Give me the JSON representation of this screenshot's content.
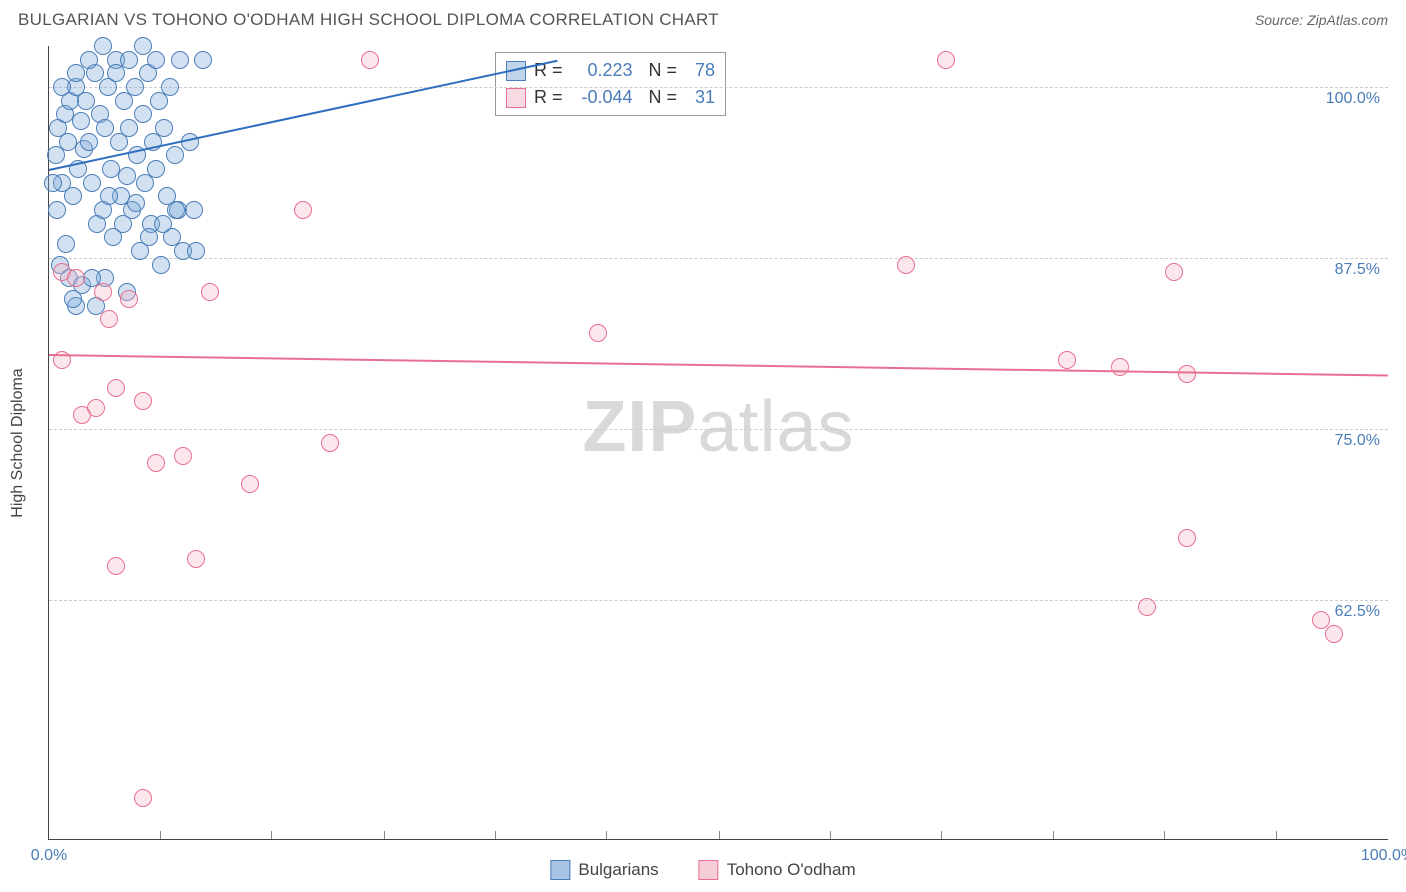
{
  "title": "BULGARIAN VS TOHONO O'ODHAM HIGH SCHOOL DIPLOMA CORRELATION CHART",
  "source_label": "Source: ZipAtlas.com",
  "y_axis_label": "High School Diploma",
  "watermark_a": "ZIP",
  "watermark_b": "atlas",
  "chart": {
    "type": "scatter",
    "xlim": [
      0,
      100
    ],
    "ylim": [
      45,
      103
    ],
    "x_ticks": [
      0,
      100
    ],
    "x_tick_labels": [
      "0.0%",
      "100.0%"
    ],
    "x_minor_ticks": [
      8.3,
      16.6,
      25,
      33.3,
      41.6,
      50,
      58.3,
      66.6,
      75,
      83.3,
      91.6
    ],
    "y_ticks": [
      62.5,
      75.0,
      87.5,
      100.0
    ],
    "y_tick_labels": [
      "62.5%",
      "75.0%",
      "87.5%",
      "100.0%"
    ],
    "background_color": "#ffffff",
    "grid_color": "#cccccc",
    "marker_radius": 9,
    "marker_stroke_width": 1.2,
    "series": [
      {
        "name": "Bulgarians",
        "fill": "#7fa9d6",
        "fill_opacity": 0.35,
        "stroke": "#4a7db8",
        "r_value": "0.223",
        "n_value": "78",
        "trend": {
          "x1": 0,
          "y1": 94,
          "x2": 38,
          "y2": 102,
          "color": "#2f6fc0",
          "width": 2
        },
        "points": [
          [
            0.5,
            95
          ],
          [
            0.7,
            97
          ],
          [
            1.0,
            93
          ],
          [
            1.2,
            98
          ],
          [
            1.4,
            96
          ],
          [
            1.6,
            99
          ],
          [
            1.8,
            92
          ],
          [
            2.0,
            100
          ],
          [
            2.2,
            94
          ],
          [
            2.4,
            97.5
          ],
          [
            2.6,
            95.5
          ],
          [
            2.8,
            99
          ],
          [
            3.0,
            96
          ],
          [
            3.2,
            93
          ],
          [
            3.4,
            101
          ],
          [
            3.6,
            90
          ],
          [
            3.8,
            98
          ],
          [
            4.0,
            91
          ],
          [
            4.2,
            97
          ],
          [
            4.4,
            100
          ],
          [
            4.6,
            94
          ],
          [
            4.8,
            89
          ],
          [
            5.0,
            102
          ],
          [
            5.2,
            96
          ],
          [
            5.4,
            92
          ],
          [
            5.6,
            99
          ],
          [
            5.8,
            93.5
          ],
          [
            6.0,
            97
          ],
          [
            6.2,
            91
          ],
          [
            6.4,
            100
          ],
          [
            6.6,
            95
          ],
          [
            6.8,
            88
          ],
          [
            7.0,
            98
          ],
          [
            7.2,
            93
          ],
          [
            7.4,
            101
          ],
          [
            7.6,
            90
          ],
          [
            7.8,
            96
          ],
          [
            8.0,
            94
          ],
          [
            8.2,
            99
          ],
          [
            8.4,
            87
          ],
          [
            8.6,
            97
          ],
          [
            8.8,
            92
          ],
          [
            9.0,
            100
          ],
          [
            9.2,
            89
          ],
          [
            9.4,
            95
          ],
          [
            9.6,
            91
          ],
          [
            9.8,
            102
          ],
          [
            10.0,
            88
          ],
          [
            1.5,
            86
          ],
          [
            2.5,
            85.5
          ],
          [
            3.5,
            84
          ],
          [
            0.8,
            87
          ],
          [
            1.3,
            88.5
          ],
          [
            4.5,
            92
          ],
          [
            5.5,
            90
          ],
          [
            6.5,
            91.5
          ],
          [
            7.5,
            89
          ],
          [
            8.5,
            90
          ],
          [
            9.5,
            91
          ],
          [
            2.0,
            101
          ],
          [
            3.0,
            102
          ],
          [
            4.0,
            103
          ],
          [
            5.0,
            101
          ],
          [
            6.0,
            102
          ],
          [
            7.0,
            103
          ],
          [
            8.0,
            102
          ],
          [
            1.0,
            100
          ],
          [
            0.3,
            93
          ],
          [
            0.6,
            91
          ],
          [
            4.2,
            86
          ],
          [
            5.8,
            85
          ],
          [
            11.5,
            102
          ],
          [
            10.5,
            96
          ],
          [
            10.8,
            91
          ],
          [
            11.0,
            88
          ],
          [
            2.0,
            84
          ],
          [
            3.2,
            86
          ],
          [
            1.8,
            84.5
          ]
        ]
      },
      {
        "name": "Tohono O'odham",
        "fill": "#f2b8c6",
        "fill_opacity": 0.35,
        "stroke": "#e86f91",
        "r_value": "-0.044",
        "n_value": "31",
        "trend": {
          "x1": 0,
          "y1": 80.5,
          "x2": 100,
          "y2": 79,
          "color": "#e86f91",
          "width": 2
        },
        "points": [
          [
            1,
            86.5
          ],
          [
            2,
            86
          ],
          [
            4,
            85
          ],
          [
            24,
            102
          ],
          [
            19,
            91
          ],
          [
            41,
            82
          ],
          [
            64,
            87
          ],
          [
            76,
            80
          ],
          [
            80,
            79.5
          ],
          [
            84,
            86.5
          ],
          [
            85,
            79
          ],
          [
            67,
            102
          ],
          [
            1,
            80
          ],
          [
            5,
            78
          ],
          [
            7,
            77
          ],
          [
            3.5,
            76.5
          ],
          [
            2.5,
            76
          ],
          [
            10,
            73
          ],
          [
            15,
            71
          ],
          [
            21,
            74
          ],
          [
            8,
            72.5
          ],
          [
            11,
            65.5
          ],
          [
            5,
            65
          ],
          [
            85,
            67
          ],
          [
            96,
            60
          ],
          [
            82,
            62
          ],
          [
            95,
            61
          ],
          [
            7,
            48
          ],
          [
            6,
            84.5
          ],
          [
            12,
            85
          ],
          [
            4.5,
            83
          ]
        ]
      }
    ]
  },
  "legend_bottom": [
    {
      "label": "Bulgarians",
      "fill": "#a8c4e4",
      "stroke": "#4a7db8"
    },
    {
      "label": "Tohono O'odham",
      "fill": "#f6cdd7",
      "stroke": "#e86f91"
    }
  ]
}
